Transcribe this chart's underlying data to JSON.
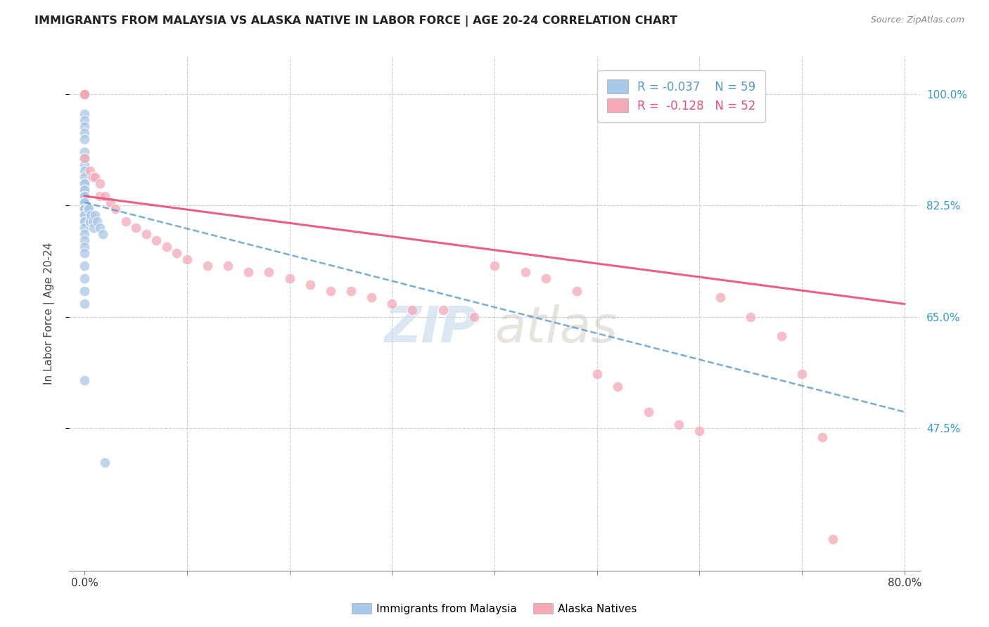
{
  "title": "IMMIGRANTS FROM MALAYSIA VS ALASKA NATIVE IN LABOR FORCE | AGE 20-24 CORRELATION CHART",
  "source": "Source: ZipAtlas.com",
  "ylabel": "In Labor Force | Age 20-24",
  "ylim": [
    0.25,
    1.06
  ],
  "xlim": [
    -0.015,
    0.815
  ],
  "legend_r1": "-0.037",
  "legend_n1": "59",
  "legend_r2": "-0.128",
  "legend_n2": "52",
  "color_blue": "#a8c8e8",
  "color_pink": "#f4a8b8",
  "color_blue_line": "#5599cc",
  "color_pink_line": "#e8507a",
  "watermark_zip": "ZIP",
  "watermark_atlas": "atlas",
  "malaysia_x": [
    0.0,
    0.0,
    0.0,
    0.0,
    0.0,
    0.0,
    0.0,
    0.0,
    0.0,
    0.0,
    0.0,
    0.0,
    0.0,
    0.0,
    0.0,
    0.0,
    0.0,
    0.0,
    0.0,
    0.0,
    0.0,
    0.0,
    0.0,
    0.0,
    0.0,
    0.0,
    0.0,
    0.0,
    0.0,
    0.0,
    0.0,
    0.0,
    0.0,
    0.0,
    0.0,
    0.0,
    0.0,
    0.0,
    0.0,
    0.0,
    0.0,
    0.0,
    0.0,
    0.0,
    0.0,
    0.0,
    0.0,
    0.003,
    0.004,
    0.005,
    0.005,
    0.006,
    0.008,
    0.009,
    0.01,
    0.012,
    0.015,
    0.018,
    0.02
  ],
  "malaysia_y": [
    1.0,
    1.0,
    1.0,
    1.0,
    1.0,
    1.0,
    1.0,
    1.0,
    0.97,
    0.96,
    0.95,
    0.94,
    0.93,
    0.91,
    0.9,
    0.89,
    0.88,
    0.87,
    0.86,
    0.86,
    0.85,
    0.85,
    0.84,
    0.84,
    0.84,
    0.83,
    0.83,
    0.83,
    0.83,
    0.82,
    0.82,
    0.82,
    0.82,
    0.81,
    0.81,
    0.8,
    0.8,
    0.79,
    0.78,
    0.77,
    0.76,
    0.75,
    0.73,
    0.71,
    0.69,
    0.67,
    0.55,
    0.82,
    0.82,
    0.8,
    0.8,
    0.81,
    0.8,
    0.79,
    0.81,
    0.8,
    0.79,
    0.78,
    0.42
  ],
  "alaska_x": [
    0.0,
    0.0,
    0.0,
    0.0,
    0.0,
    0.0,
    0.0,
    0.0,
    0.0,
    0.005,
    0.008,
    0.01,
    0.015,
    0.015,
    0.02,
    0.025,
    0.03,
    0.04,
    0.05,
    0.06,
    0.07,
    0.08,
    0.09,
    0.1,
    0.12,
    0.14,
    0.16,
    0.18,
    0.2,
    0.22,
    0.24,
    0.26,
    0.28,
    0.3,
    0.32,
    0.35,
    0.38,
    0.4,
    0.43,
    0.45,
    0.48,
    0.5,
    0.52,
    0.55,
    0.58,
    0.6,
    0.62,
    0.65,
    0.68,
    0.7,
    0.72,
    0.73
  ],
  "alaska_y": [
    1.0,
    1.0,
    1.0,
    1.0,
    1.0,
    1.0,
    1.0,
    1.0,
    0.9,
    0.88,
    0.87,
    0.87,
    0.86,
    0.84,
    0.84,
    0.83,
    0.82,
    0.8,
    0.79,
    0.78,
    0.77,
    0.76,
    0.75,
    0.74,
    0.73,
    0.73,
    0.72,
    0.72,
    0.71,
    0.7,
    0.69,
    0.69,
    0.68,
    0.67,
    0.66,
    0.66,
    0.65,
    0.73,
    0.72,
    0.71,
    0.69,
    0.56,
    0.54,
    0.5,
    0.48,
    0.47,
    0.68,
    0.65,
    0.62,
    0.56,
    0.46,
    0.3
  ]
}
